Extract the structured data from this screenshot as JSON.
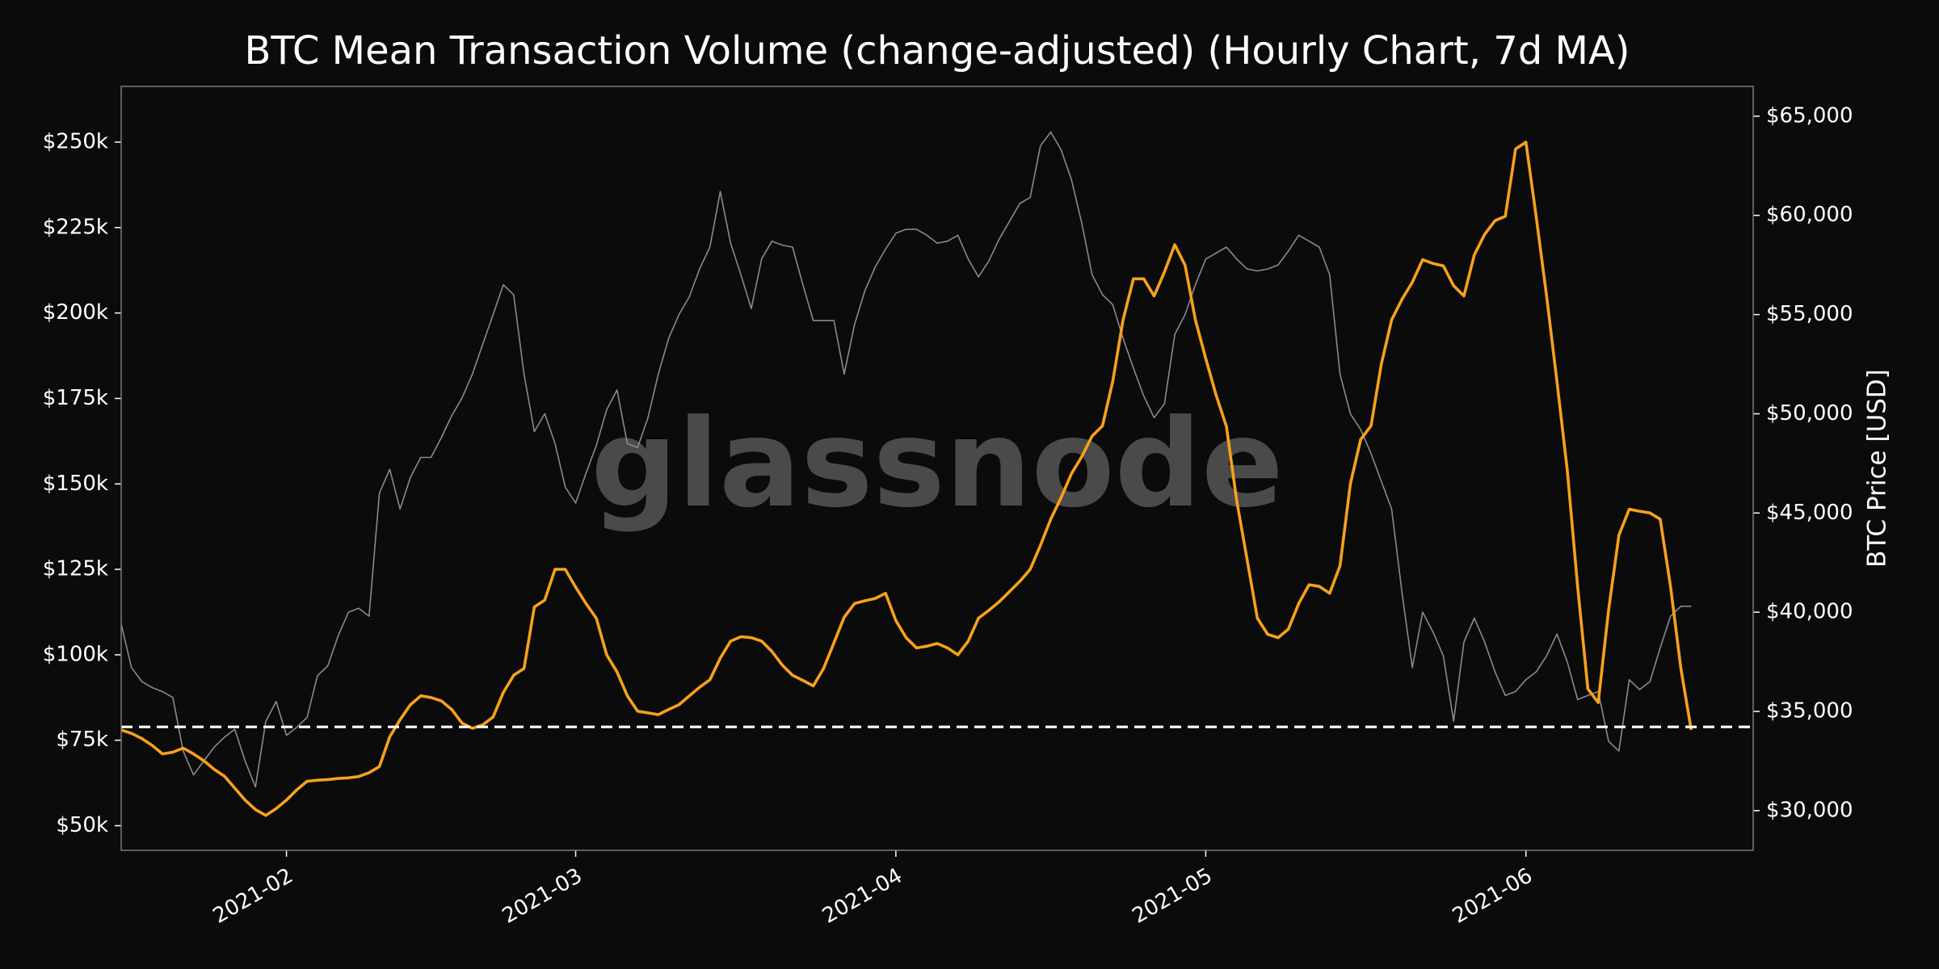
{
  "chart_data": {
    "type": "line",
    "title": "BTC Mean Transaction Volume (change-adjusted) (Hourly Chart, 7d MA)",
    "watermark": "glassnode",
    "y2label": "BTC Price [USD]",
    "categories": [
      null,
      null,
      null,
      null,
      null,
      null,
      null,
      null,
      null,
      null,
      null,
      null,
      null,
      null,
      null,
      null,
      "2021-02",
      null,
      null,
      null,
      null,
      null,
      null,
      null,
      null,
      null,
      null,
      null,
      null,
      null,
      null,
      null,
      null,
      null,
      null,
      null,
      null,
      null,
      null,
      null,
      null,
      null,
      null,
      null,
      "2021-03",
      null,
      null,
      null,
      null,
      null,
      null,
      null,
      null,
      null,
      null,
      null,
      null,
      null,
      null,
      null,
      null,
      null,
      null,
      null,
      null,
      null,
      null,
      null,
      null,
      null,
      null,
      null,
      null,
      null,
      null,
      "2021-04",
      null,
      null,
      null,
      null,
      null,
      null,
      null,
      null,
      null,
      null,
      null,
      null,
      null,
      null,
      null,
      null,
      null,
      null,
      null,
      null,
      null,
      null,
      null,
      null,
      null,
      null,
      null,
      null,
      null,
      "2021-05",
      null,
      null,
      null,
      null,
      null,
      null,
      null,
      null,
      null,
      null,
      null,
      null,
      null,
      null,
      null,
      null,
      null,
      null,
      null,
      null,
      null,
      null,
      null,
      null,
      null,
      null,
      null,
      null,
      null,
      null,
      "2021-06",
      null,
      null,
      null,
      null,
      null,
      null,
      null,
      null,
      null,
      null,
      null,
      null,
      null,
      null,
      null,
      null,
      null,
      null,
      null,
      null,
      null,
      null
    ],
    "series": [
      {
        "color": "#8a8a8a",
        "axis": "y2",
        "values": [
          39400,
          37200,
          36500,
          36200,
          36000,
          35700,
          33000,
          31800,
          32500,
          33200,
          33700,
          34100,
          32500,
          31200,
          34500,
          35500,
          33800,
          34200,
          34700,
          36800,
          37300,
          38800,
          40000,
          40200,
          39800,
          46000,
          47200,
          45200,
          46800,
          47800,
          47800,
          48800,
          49900,
          50800,
          52000,
          53500,
          55000,
          56500,
          56000,
          52000,
          49100,
          50000,
          48500,
          46300,
          45500,
          47000,
          48400,
          50200,
          51200,
          48500,
          48300,
          49800,
          52000,
          53800,
          55000,
          55900,
          57300,
          58400,
          61200,
          58600,
          57000,
          55300,
          57800,
          58700,
          58500,
          58400,
          56500,
          54700,
          54700,
          54700,
          52000,
          54500,
          56200,
          57400,
          58300,
          59100,
          59300,
          59300,
          59000,
          58600,
          58700,
          59000,
          57800,
          56900,
          57700,
          58800,
          59700,
          60600,
          60900,
          63500,
          64200,
          63300,
          61800,
          59600,
          57000,
          56000,
          55500,
          53800,
          52300,
          50900,
          49800,
          50500,
          54000,
          55000,
          56500,
          57800,
          58100,
          58400,
          57800,
          57300,
          57200,
          57300,
          57500,
          58200,
          59000,
          58700,
          58400,
          57000,
          52000,
          50000,
          49200,
          48000,
          46600,
          45200,
          41000,
          37200,
          40000,
          39000,
          37800,
          34500,
          38500,
          39700,
          38500,
          37000,
          35800,
          36000,
          36600,
          37000,
          37800,
          38900,
          37500,
          35600,
          35800,
          36000,
          33500,
          33000,
          36600,
          36100,
          36500,
          38200,
          39800,
          40300,
          40300,
          null,
          null,
          null,
          null,
          null,
          null
        ]
      },
      {
        "color": "#f7a11c",
        "values": [
          78,
          77,
          75.5,
          73.5,
          71,
          71.5,
          72.7,
          71,
          69,
          66.5,
          64.5,
          61,
          57.5,
          54.7,
          53,
          55,
          57.5,
          60.5,
          63,
          63.3,
          63.5,
          63.8,
          64,
          64.4,
          65.5,
          67.3,
          76,
          81,
          85.4,
          88,
          87.5,
          86.5,
          84,
          80,
          78.5,
          79.5,
          81.8,
          89,
          94,
          96,
          114,
          116,
          125,
          125,
          119.8,
          115,
          110.7,
          100,
          95,
          88,
          83.5,
          83,
          82.5,
          84,
          85.4,
          88,
          90.5,
          92.7,
          99,
          104,
          105.3,
          105,
          104,
          101,
          97,
          94,
          92.5,
          90.9,
          96,
          103.5,
          111,
          115,
          115.8,
          116.5,
          118,
          110,
          105,
          102,
          102.5,
          103.3,
          102,
          100,
          104,
          110.7,
          113,
          115.5,
          118.5,
          121.5,
          125,
          132,
          139.7,
          146,
          153,
          158,
          164,
          167,
          180,
          198,
          210,
          210,
          205,
          212,
          220,
          214,
          198,
          186.7,
          176,
          166.8,
          145,
          128,
          110.7,
          106,
          105,
          107.5,
          115,
          120.5,
          120,
          118,
          126,
          150,
          163,
          167,
          185,
          198,
          204,
          209,
          215.6,
          214.5,
          213.8,
          208,
          205,
          217,
          223,
          227,
          228.3,
          248,
          250,
          228,
          205,
          180,
          154,
          120,
          90,
          86,
          113,
          135,
          142.6,
          142,
          141.5,
          139.7,
          120,
          96,
          78,
          null,
          null,
          null,
          null,
          null,
          null
        ]
      }
    ],
    "hline": 78.9,
    "ylim": [
      42.8,
      266.3
    ],
    "yticks": [
      {
        "value": 50,
        "label": "$50k"
      },
      {
        "value": 75,
        "label": "$75k"
      },
      {
        "value": 100,
        "label": "$100k"
      },
      {
        "value": 125,
        "label": "$125k"
      },
      {
        "value": 150,
        "label": "$150k"
      },
      {
        "value": 175,
        "label": "$175k"
      },
      {
        "value": 200,
        "label": "$200k"
      },
      {
        "value": 225,
        "label": "$225k"
      },
      {
        "value": 250,
        "label": "$250k"
      }
    ],
    "y2lim": [
      28000,
      66500
    ],
    "y2ticks": [
      {
        "value": 30000,
        "label": "$30,000"
      },
      {
        "value": 35000,
        "label": "$35,000"
      },
      {
        "value": 40000,
        "label": "$40,000"
      },
      {
        "value": 45000,
        "label": "$45,000"
      },
      {
        "value": 50000,
        "label": "$50,000"
      },
      {
        "value": 55000,
        "label": "$55,000"
      },
      {
        "value": 60000,
        "label": "$60,000"
      },
      {
        "value": 65000,
        "label": "$65,000"
      }
    ],
    "grid": false
  }
}
